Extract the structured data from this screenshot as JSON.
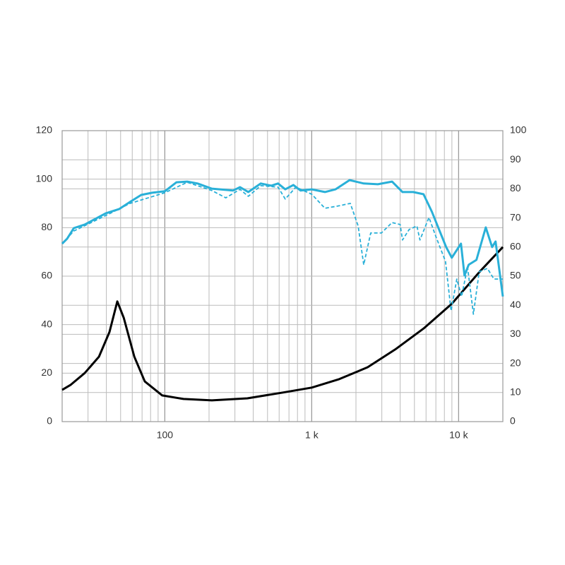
{
  "chart_data": {
    "type": "line",
    "xscale": "log",
    "xlim": [
      20,
      20000
    ],
    "xticks": [
      100,
      {
        "value": 1000,
        "label": "1 k"
      },
      {
        "value": 10000,
        "label": "10 k"
      }
    ],
    "ylim": [
      0,
      120
    ],
    "yticks": [
      0,
      20,
      40,
      60,
      80,
      100,
      120
    ],
    "y2lim": [
      0,
      100
    ],
    "y2ticks": [
      0,
      10,
      20,
      30,
      40,
      50,
      60,
      70,
      80,
      90,
      100
    ],
    "grid": true,
    "series": [
      {
        "color": "#29b0d8",
        "linestyle": "solid",
        "x": [
          20,
          21.6,
          24,
          28.5,
          39.6,
          49,
          58,
          69,
          82,
          100,
          120,
          142,
          167,
          209,
          291,
          325,
          370,
          450,
          530,
          590,
          660,
          750,
          840,
          1000,
          1230,
          1450,
          1810,
          2260,
          2820,
          3520,
          4150,
          4900,
          5770,
          6580,
          7360,
          8220,
          8980,
          10370,
          10970,
          11700,
          13220,
          15300,
          16900,
          17850,
          20000
        ],
        "values": [
          73.4,
          75.4,
          79.8,
          81.3,
          85.9,
          87.7,
          90.6,
          93.5,
          94.4,
          95,
          98.7,
          99,
          98.2,
          96.1,
          95.3,
          96.7,
          94.7,
          98.2,
          97.3,
          98.2,
          95.8,
          97.6,
          95.3,
          95.8,
          94.7,
          95.8,
          99.6,
          98.2,
          97.9,
          99,
          94.7,
          94.7,
          93.8,
          86.5,
          79.2,
          72,
          67.6,
          73.4,
          60.3,
          64.7,
          66.7,
          80.1,
          72,
          74.3,
          51.6
        ]
      },
      {
        "color": "#29b0d8",
        "linestyle": "dashed",
        "x": [
          20,
          24,
          39.6,
          58,
          100,
          142,
          209,
          260,
          325,
          370,
          450,
          590,
          660,
          780,
          1000,
          1230,
          1500,
          1830,
          2070,
          2260,
          2520,
          2980,
          3520,
          4000,
          4150,
          4600,
          5200,
          5450,
          6280,
          7000,
          8140,
          8880,
          9720,
          10480,
          11500,
          12600,
          13800,
          15700,
          17400,
          20000
        ],
        "values": [
          73.4,
          78.6,
          85,
          90,
          94.4,
          98.7,
          95.3,
          92.3,
          95.8,
          92.9,
          97.3,
          96.7,
          91.8,
          96.7,
          93.8,
          88,
          88.9,
          90,
          80.7,
          64.7,
          77.8,
          77.8,
          82.1,
          81.3,
          74.9,
          79.2,
          80.7,
          74.9,
          84.2,
          76.3,
          66.1,
          45.7,
          58.8,
          51.6,
          63.8,
          44.3,
          61.8,
          63.2,
          58.8,
          58.8
        ]
      },
      {
        "color": "#000000",
        "linestyle": "solid",
        "axis": "y2",
        "x": [
          20,
          22.8,
          28.5,
          35.6,
          42,
          47.5,
          52.5,
          62,
          73,
          96,
          134,
          209,
          365,
          636,
          1000,
          1540,
          2400,
          3700,
          5770,
          8980,
          13900,
          20000
        ],
        "values": [
          10.9,
          12.6,
          16.7,
          22.3,
          30.8,
          41.3,
          35.7,
          22.3,
          13.8,
          9,
          7.8,
          7.3,
          8,
          10,
          11.7,
          14.6,
          18.7,
          24.8,
          32,
          40.5,
          51.5,
          60
        ]
      }
    ]
  }
}
